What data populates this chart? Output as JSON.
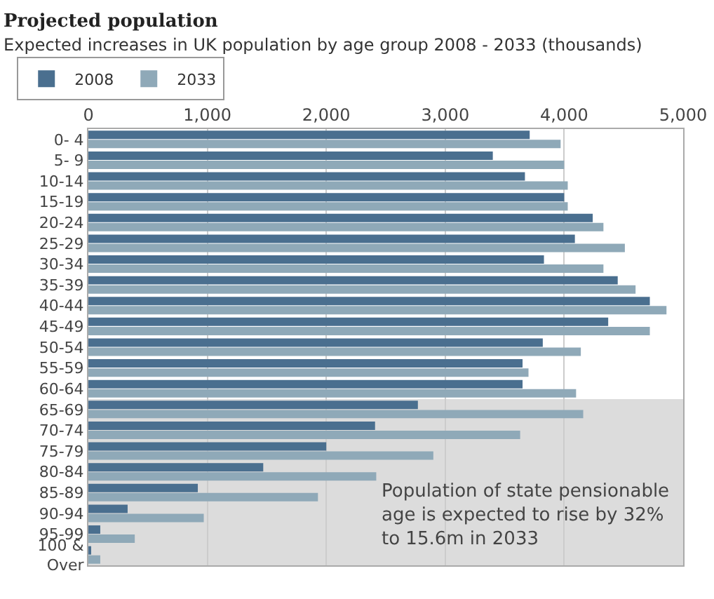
{
  "chart_data": {
    "type": "bar",
    "orientation": "horizontal",
    "title": "Projected population",
    "subtitle": "Expected increases in UK population by age group 2008 - 2033 (thousands)",
    "categories": [
      "0- 4",
      "5- 9",
      "10-14",
      "15-19",
      "20-24",
      "25-29",
      "30-34",
      "35-39",
      "40-44",
      "45-49",
      "50-54",
      "55-59",
      "60-64",
      "65-69",
      "70-74",
      "75-79",
      "80-84",
      "85-89",
      "90-94",
      "95-99",
      "100 &\nOver"
    ],
    "series": [
      {
        "name": "2008",
        "color": "#4a6f8f",
        "values": [
          3710,
          3400,
          3670,
          4000,
          4240,
          4090,
          3830,
          4450,
          4720,
          4370,
          3820,
          3650,
          3650,
          2770,
          2410,
          2000,
          1470,
          920,
          330,
          100,
          20
        ]
      },
      {
        "name": "2033",
        "color": "#8fa9b8",
        "values": [
          3970,
          4000,
          4030,
          4030,
          4330,
          4510,
          4330,
          4600,
          4860,
          4720,
          4140,
          3700,
          4100,
          4160,
          3630,
          2900,
          2420,
          1930,
          970,
          390,
          100
        ]
      }
    ],
    "xlim": [
      0,
      5000
    ],
    "xticks": [
      {
        "value": 0,
        "label": "0"
      },
      {
        "value": 1000,
        "label": "1,000"
      },
      {
        "value": 2000,
        "label": "2,000"
      },
      {
        "value": 3000,
        "label": "3,000"
      },
      {
        "value": 4000,
        "label": "4,000"
      },
      {
        "value": 5000,
        "label": "5,000"
      }
    ],
    "grid": "x",
    "legend": "top left",
    "bands": [
      {
        "axis": "y",
        "from": "65-69",
        "to": "100 &\nOver",
        "color": "#dcdcdc"
      }
    ],
    "annotations": [
      "Population of state pensionable\nage is expected to rise by 32%\nto 15.6m in 2033"
    ]
  }
}
